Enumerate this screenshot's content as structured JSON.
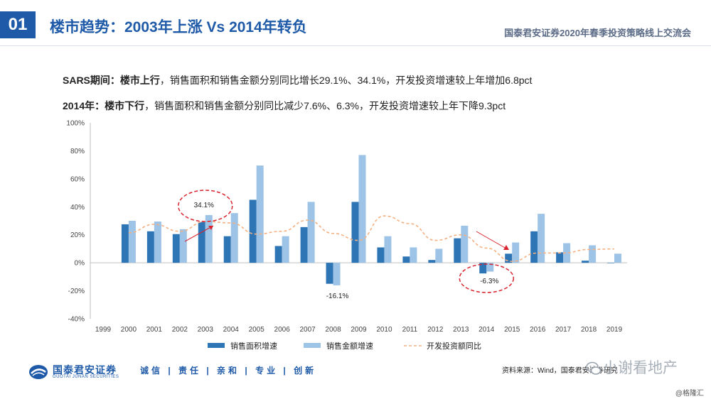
{
  "header": {
    "badge": "01",
    "title": "楼市趋势：2003年上涨 Vs 2014年转负",
    "event": "国泰君安证券2020年春季投资策略线上交流会"
  },
  "summary": {
    "line1_bold": "SARS期间：楼市上行",
    "line1_rest": "，销售面积和销售金额分别同比增长29.1%、34.1%，开发投资增速较上年增加6.8pct",
    "line2_bold": "2014年：楼市下行",
    "line2_rest": "，销售面积和销售金额分别同比减少7.6%、6.3%，开发投资增速较上年下降9.3pct"
  },
  "chart_data": {
    "type": "bar",
    "categories": [
      "1999",
      "2000",
      "2001",
      "2002",
      "2003",
      "2004",
      "2005",
      "2006",
      "2007",
      "2008",
      "2009",
      "2010",
      "2011",
      "2012",
      "2013",
      "2014",
      "2015",
      "2016",
      "2017",
      "2018",
      "2019"
    ],
    "ylim": [
      -40,
      100
    ],
    "yticks": [
      "-40%",
      "-20%",
      "0%",
      "20%",
      "40%",
      "60%",
      "80%",
      "100%"
    ],
    "ytick_values": [
      -40,
      -20,
      0,
      20,
      40,
      60,
      80,
      100
    ],
    "grid": "none",
    "legend_placement": "bottom",
    "series": [
      {
        "name": "销售面积增速",
        "kind": "bar",
        "color": "#2e75b6",
        "values": [
          null,
          27.5,
          22.5,
          20.5,
          29.1,
          19.0,
          45.0,
          12.0,
          25.5,
          -15.0,
          43.5,
          11.0,
          4.5,
          2.0,
          17.5,
          -7.6,
          6.5,
          22.5,
          7.5,
          1.5,
          0
        ]
      },
      {
        "name": "销售金额增速",
        "kind": "bar",
        "color": "#9dc3e6",
        "values": [
          null,
          30.0,
          29.5,
          24.0,
          34.1,
          35.5,
          69.5,
          19.0,
          43.5,
          -16.1,
          77.0,
          19.0,
          11.0,
          10.0,
          26.5,
          -6.3,
          14.5,
          35.0,
          14.0,
          12.5,
          6.5
        ]
      },
      {
        "name": "开发投资额同比",
        "kind": "line",
        "color": "#f4b183",
        "values": [
          null,
          21.5,
          27.5,
          22.5,
          29.5,
          28.5,
          20.5,
          22.5,
          30.5,
          21.0,
          16.0,
          33.5,
          28.0,
          16.0,
          20.0,
          10.5,
          1.0,
          7.0,
          7.0,
          9.5,
          9.9
        ]
      }
    ],
    "annotations": [
      {
        "text": "34.1%",
        "category": "2003",
        "value": 34.1
      },
      {
        "text": "-16.1%",
        "category": "2008",
        "value": -16.1
      },
      {
        "text": "-6.3%",
        "category": "2014",
        "value": -6.3
      }
    ]
  },
  "footer": {
    "logo_cn": "国泰君安证券",
    "logo_en": "GUOTAI JUNAN SECURITIES",
    "slogan": "诚信 | 责任 | 亲和 | 专业 | 创新",
    "source": "资料来源：Wind，国泰君安证券研究",
    "watermark": "小谢看地产",
    "credit": "@格隆汇"
  },
  "colors": {
    "brand": "#1e5aa8",
    "highlight": "#d9232e"
  }
}
